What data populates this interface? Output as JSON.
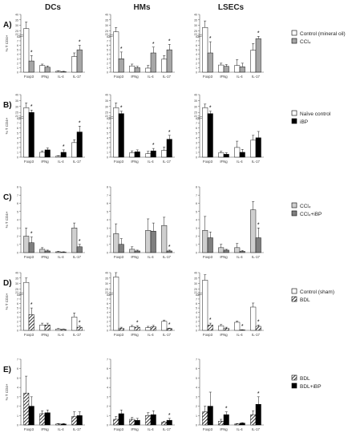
{
  "column_titles": [
    "DCs",
    "HMs",
    "LSECs"
  ],
  "colors": {
    "white": "#ffffff",
    "gray": "#a6a6a6",
    "black": "#000000",
    "light_gray": "#cfcfcf",
    "dark_gray": "#7f7f7f",
    "axis": "#555555"
  },
  "chart_data": [
    {
      "panel": "A)",
      "type": "bar",
      "ylabel": "% T CD4+",
      "categories": [
        "Foxp3",
        "IFNg",
        "IL-4",
        "IL-17"
      ],
      "legend": [
        {
          "label": "Control (mineral oil)",
          "fill": "white"
        },
        {
          "label": "CCl₄",
          "fill": "gray"
        }
      ],
      "subplots": [
        {
          "column": "DCs",
          "ylim": [
            0,
            40
          ],
          "axis_break": [
            8,
            22
          ],
          "yticks": [
            0,
            1,
            2,
            3,
            4,
            5,
            6,
            7,
            8,
            22,
            25,
            30,
            35,
            40
          ],
          "series": [
            {
              "values": [
                27,
                1.5,
                0.2,
                3.5
              ],
              "err": [
                6,
                0.3,
                0.1,
                0.8
              ]
            },
            {
              "values": [
                2.5,
                1.1,
                0.1,
                5
              ],
              "err": [
                1.2,
                0.3,
                0.1,
                1
              ]
            }
          ],
          "stars": [
            [
              1,
              0
            ],
            [
              1,
              3
            ]
          ]
        },
        {
          "column": "HMs",
          "ylim": [
            0,
            40
          ],
          "axis_break": [
            8,
            22
          ],
          "yticks": [
            0,
            1,
            2,
            3,
            4,
            5,
            6,
            7,
            8,
            22,
            25,
            30,
            35,
            40
          ],
          "series": [
            {
              "values": [
                24,
                1.4,
                0.9,
                2.9
              ],
              "err": [
                4,
                0.4,
                0.6,
                0.8
              ]
            },
            {
              "values": [
                3,
                1,
                4.3,
                5
              ],
              "err": [
                1.5,
                0.3,
                1.3,
                1.2
              ]
            }
          ],
          "stars": [
            [
              1,
              0
            ],
            [
              1,
              2
            ],
            [
              1,
              3
            ]
          ]
        },
        {
          "column": "LSECs",
          "ylim": [
            0,
            40
          ],
          "axis_break": [
            8,
            22
          ],
          "yticks": [
            0,
            1,
            2,
            3,
            4,
            5,
            6,
            7,
            8,
            22,
            25,
            30,
            35,
            40
          ],
          "series": [
            {
              "values": [
                28,
                1.6,
                1.5,
                4.9
              ],
              "err": [
                6,
                0.4,
                1.3,
                1.5
              ]
            },
            {
              "values": [
                4.3,
                1.3,
                1.2,
                7.5
              ],
              "err": [
                2.5,
                0.4,
                0.8,
                1
              ]
            }
          ],
          "stars": [
            [
              1,
              0
            ],
            [
              1,
              3
            ]
          ]
        }
      ]
    },
    {
      "panel": "B)",
      "type": "bar",
      "ylabel": "% T CD4+",
      "categories": [
        "Foxp3",
        "IFNg",
        "IL-4",
        "IL-17"
      ],
      "legend": [
        {
          "label": "Naïve control",
          "fill": "white"
        },
        {
          "label": "iBP",
          "fill": "black"
        }
      ],
      "subplots": [
        {
          "column": "DCs",
          "ylim": [
            0,
            40
          ],
          "axis_break": [
            8,
            22
          ],
          "yticks": [
            0,
            1,
            2,
            3,
            4,
            5,
            6,
            7,
            8,
            22,
            25,
            30,
            35,
            40
          ],
          "series": [
            {
              "values": [
                29,
                1,
                0.2,
                3
              ],
              "err": [
                4,
                0.3,
                0.1,
                0.6
              ]
            },
            {
              "values": [
                25,
                1.5,
                1,
                5.2
              ],
              "err": [
                2,
                0.4,
                0.5,
                1.2
              ]
            }
          ],
          "stars": [
            [
              1,
              0
            ],
            [
              1,
              2
            ],
            [
              1,
              3
            ]
          ]
        },
        {
          "column": "HMs",
          "ylim": [
            0,
            40
          ],
          "axis_break": [
            8,
            22
          ],
          "yticks": [
            0,
            1,
            2,
            3,
            4,
            5,
            6,
            7,
            8,
            22,
            25,
            30,
            35,
            40
          ],
          "series": [
            {
              "values": [
                29,
                0.9,
                0.7,
                1.4
              ],
              "err": [
                4,
                0.4,
                0.5,
                0.7
              ]
            },
            {
              "values": [
                24,
                1.1,
                1.3,
                3.7
              ],
              "err": [
                2,
                0.4,
                0.5,
                0.8
              ]
            }
          ],
          "stars": [
            [
              1,
              0
            ],
            [
              1,
              2
            ],
            [
              1,
              3
            ]
          ]
        },
        {
          "column": "LSECs",
          "ylim": [
            0,
            40
          ],
          "axis_break": [
            8,
            22
          ],
          "yticks": [
            0,
            1,
            2,
            3,
            4,
            5,
            6,
            7,
            8,
            22,
            25,
            30,
            35,
            40
          ],
          "series": [
            {
              "values": [
                29,
                0.9,
                2,
                3.5
              ],
              "err": [
                3,
                0.3,
                1.3,
                1
              ]
            },
            {
              "values": [
                24,
                0.6,
                1,
                4
              ],
              "err": [
                2,
                0.3,
                0.6,
                1.3
              ]
            }
          ],
          "stars": [
            [
              1,
              0
            ]
          ]
        }
      ]
    },
    {
      "panel": "C)",
      "type": "bar",
      "ylabel": "% T CD4+",
      "categories": [
        "Foxp3",
        "IFNg",
        "IL-4",
        "IL-17"
      ],
      "legend": [
        {
          "label": "CCl₄",
          "fill": "light_gray"
        },
        {
          "label": "CCl₄+iBP",
          "fill": "dark_gray"
        }
      ],
      "subplots": [
        {
          "column": "DCs",
          "ylim": [
            0,
            8
          ],
          "yticks": [
            0,
            1,
            2,
            3,
            4,
            5,
            6,
            7,
            8
          ],
          "series": [
            {
              "values": [
                2,
                0.4,
                0.1,
                3
              ],
              "err": [
                1,
                0.2,
                0.05,
                0.6
              ]
            },
            {
              "values": [
                1.2,
                0.2,
                0.05,
                0.7
              ],
              "err": [
                0.7,
                0.1,
                0.05,
                0.3
              ]
            }
          ],
          "stars": [
            [
              1,
              0
            ],
            [
              1,
              3
            ]
          ]
        },
        {
          "column": "HMs",
          "ylim": [
            0,
            8
          ],
          "yticks": [
            0,
            1,
            2,
            3,
            4,
            5,
            6,
            7,
            8
          ],
          "series": [
            {
              "values": [
                2.3,
                0.4,
                2.7,
                3.3
              ],
              "err": [
                1.2,
                0.3,
                1.4,
                1
              ]
            },
            {
              "values": [
                1,
                0.2,
                2.6,
                0.2
              ],
              "err": [
                0.7,
                0.1,
                1,
                0.1
              ]
            }
          ],
          "stars": [
            [
              1,
              3
            ]
          ]
        },
        {
          "column": "LSECs",
          "ylim": [
            0,
            8
          ],
          "yticks": [
            0,
            1,
            2,
            3,
            4,
            5,
            6,
            7,
            8
          ],
          "series": [
            {
              "values": [
                2.7,
                0.6,
                0.6,
                5.2
              ],
              "err": [
                1.7,
                0.4,
                0.5,
                1
              ]
            },
            {
              "values": [
                1.8,
                0.3,
                0.15,
                1.8
              ],
              "err": [
                0.7,
                0.1,
                0.1,
                1.2
              ]
            }
          ],
          "stars": [
            [
              1,
              3
            ]
          ]
        }
      ]
    },
    {
      "panel": "D)",
      "type": "bar",
      "ylabel": "% T CD4+",
      "categories": [
        "Foxp3",
        "IFNg",
        "IL-4",
        "IL-17"
      ],
      "legend": [
        {
          "label": "Control (sham)",
          "fill": "white"
        },
        {
          "label": "BDL",
          "fill": "hatch"
        }
      ],
      "subplots": [
        {
          "column": "DCs",
          "ylim": [
            0,
            40
          ],
          "axis_break": [
            8,
            22
          ],
          "yticks": [
            0,
            1,
            2,
            3,
            4,
            5,
            6,
            7,
            8,
            22,
            25,
            30,
            35,
            40
          ],
          "series": [
            {
              "values": [
                31,
                1.2,
                0.3,
                3
              ],
              "err": [
                4,
                0.4,
                0.1,
                0.9
              ]
            },
            {
              "values": [
                3.5,
                1.2,
                0.2,
                0.7
              ],
              "err": [
                1.5,
                0.4,
                0.1,
                0.3
              ]
            }
          ],
          "stars": [
            [
              1,
              0
            ],
            [
              1,
              3
            ]
          ]
        },
        {
          "column": "HMs",
          "ylim": [
            0,
            40
          ],
          "axis_break": [
            8,
            22
          ],
          "yticks": [
            0,
            1,
            2,
            3,
            4,
            5,
            6,
            7,
            8,
            22,
            25,
            30,
            35,
            40
          ],
          "series": [
            {
              "values": [
                36,
                0.8,
                0.6,
                2
              ],
              "err": [
                4,
                0.3,
                0.3,
                0.3
              ]
            },
            {
              "values": [
                0.5,
                0.7,
                0.8,
                0.4
              ],
              "err": [
                0.2,
                0.3,
                0.3,
                0.1
              ]
            }
          ],
          "stars": [
            [
              1,
              1
            ],
            [
              1,
              3
            ]
          ]
        },
        {
          "column": "LSECs",
          "ylim": [
            0,
            40
          ],
          "axis_break": [
            8,
            22
          ],
          "yticks": [
            0,
            1,
            2,
            3,
            4,
            5,
            6,
            7,
            8,
            22,
            25,
            30,
            35,
            40
          ],
          "series": [
            {
              "values": [
                33,
                1,
                1.8,
                5.2
              ],
              "err": [
                5,
                0.3,
                0.3,
                0.9
              ]
            },
            {
              "values": [
                1.2,
                0.5,
                0.1,
                0.9
              ],
              "err": [
                0.4,
                0.2,
                0.05,
                0.3
              ]
            }
          ],
          "stars": [
            [
              1,
              0
            ],
            [
              1,
              2
            ],
            [
              1,
              3
            ]
          ]
        }
      ]
    },
    {
      "panel": "E)",
      "type": "bar",
      "ylabel": "% T CD4+",
      "categories": [
        "Foxp3",
        "IFNg",
        "IL-4",
        "IL-17"
      ],
      "legend": [
        {
          "label": "BDL",
          "fill": "hatch"
        },
        {
          "label": "BDL+iBP",
          "fill": "black"
        }
      ],
      "subplots": [
        {
          "column": "DCs",
          "ylim": [
            0,
            7
          ],
          "yticks": [
            0,
            1,
            2,
            3,
            4,
            5,
            6,
            7
          ],
          "series": [
            {
              "values": [
                3.4,
                1.2,
                0.1,
                0.9
              ],
              "err": [
                1.8,
                0.3,
                0.05,
                0.5
              ]
            },
            {
              "values": [
                2,
                1.3,
                0.1,
                1
              ],
              "err": [
                1,
                0.3,
                0.05,
                0.4
              ]
            }
          ],
          "stars": []
        },
        {
          "column": "HMs",
          "ylim": [
            0,
            7
          ],
          "yticks": [
            0,
            1,
            2,
            3,
            4,
            5,
            6,
            7
          ],
          "series": [
            {
              "values": [
                0.6,
                0.6,
                1,
                0.3
              ],
              "err": [
                0.3,
                0.2,
                0.3,
                0.1
              ]
            },
            {
              "values": [
                1.2,
                0.5,
                1.1,
                0.5
              ],
              "err": [
                0.4,
                0.2,
                0.4,
                0.2
              ]
            }
          ],
          "stars": [
            [
              1,
              3
            ]
          ]
        },
        {
          "column": "LSECs",
          "ylim": [
            0,
            7
          ],
          "yticks": [
            0,
            1,
            2,
            3,
            4,
            5,
            6,
            7
          ],
          "series": [
            {
              "values": [
                1.4,
                0.4,
                0.1,
                1.1
              ],
              "err": [
                0.6,
                0.2,
                0.05,
                0.4
              ]
            },
            {
              "values": [
                2,
                1.1,
                0.2,
                2.2
              ],
              "err": [
                1.5,
                0.3,
                0.05,
                0.8
              ]
            }
          ],
          "stars": [
            [
              1,
              1
            ],
            [
              1,
              3
            ]
          ]
        }
      ]
    }
  ]
}
